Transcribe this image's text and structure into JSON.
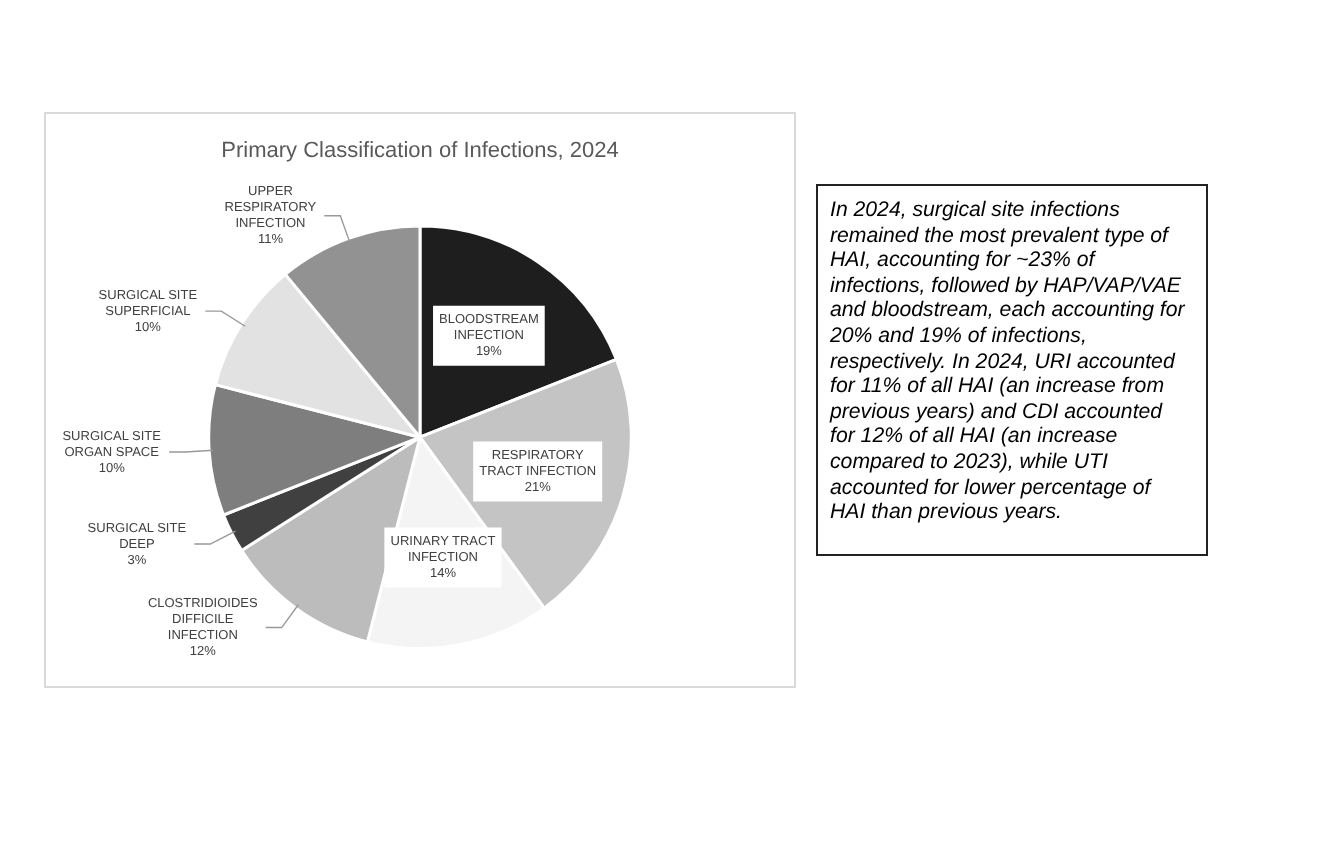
{
  "chart_data": {
    "type": "pie",
    "title": "Primary Classification of Infections, 2024",
    "categories": [
      "BLOODSTREAM INFECTION",
      "RESPIRATORY TRACT INFECTION",
      "URINARY TRACT INFECTION",
      "CLOSTRIDIOIDES DIFFICILE INFECTION",
      "SURGICAL SITE DEEP",
      "SURGICAL SITE ORGAN SPACE",
      "SURGICAL SITE SUPERFICIAL",
      "UPPER RESPIRATORY INFECTION"
    ],
    "values": [
      19,
      21,
      14,
      12,
      3,
      10,
      10,
      11
    ],
    "colors": [
      "#1e1e1e",
      "#c4c4c4",
      "#f4f4f4",
      "#bcbcbc",
      "#404040",
      "#7e7e7e",
      "#e2e2e2",
      "#929292"
    ],
    "value_labels": [
      "19%",
      "21%",
      "14%",
      "12%",
      "3%",
      "10%",
      "10%",
      "11%"
    ],
    "legend": false,
    "annotations": [
      "In 2024, surgical site infections remained the most prevalent type of HAI, accounting for ~23% of infections, followed by HAP/VAP/VAE and bloodstream, each accounting for 20% and 19% of infections, respectively. In 2024, URI accounted for 11% of all HAI (an increase from previous years) and CDI accounted for 12% of all HAI (an increase compared to 2023), while UTI accounted for lower percentage of HAI than previous years."
    ]
  }
}
